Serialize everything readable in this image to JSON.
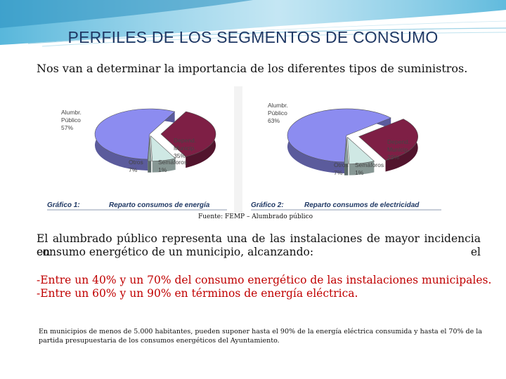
{
  "slide": {
    "title": "PERFILES DE LOS SEGMENTOS DE CONSUMO",
    "intro": "Nos  van a determinar la importancia de los diferentes tipos de suministros.",
    "source": "Fuente: FEMP – Alumbrado público",
    "para_line1": "El alumbrado público representa una de las instalaciones de mayor incidencia en el",
    "para_line2": "consumo energético de un municipio, alcanzando:",
    "highlight1": "-Entre un 40% y un 70% del consumo energético de las instalaciones municipales.",
    "highlight2": "-Entre un 60% y un 90% en términos de energía eléctrica.",
    "note_line1": "En municipios de menos de 5.000 habitantes, pueden suponer hasta el 90% de la energía eléctrica consumida y hasta el 70% de la",
    "note_line2": "partida presupuestaria de los consumos energéticos del Ayuntamiento.",
    "accent_color": "#1f3864",
    "highlight_color": "#c00000"
  },
  "chart_data": [
    {
      "type": "pie",
      "caption_num": "Gráfico 1:",
      "caption_text": "Reparto consumos de energía",
      "slices": [
        {
          "label1": "Alumbr.",
          "label2": "Público",
          "value": 57,
          "value_text": "57%",
          "color": "#8c8cf0"
        },
        {
          "label1": "Depend.",
          "label2": "Municip.",
          "value": 35,
          "value_text": "35%",
          "color": "#7e1f45"
        },
        {
          "label1": "Otros",
          "label2": "",
          "value": 7,
          "value_text": "7%",
          "color": "#cfe8e4"
        },
        {
          "label1": "Semáforos",
          "label2": "",
          "value": 1,
          "value_text": "1%",
          "color": "#8aa1a0"
        }
      ]
    },
    {
      "type": "pie",
      "caption_num": "Gráfico 2:",
      "caption_text": "Reparto consumos de electricidad",
      "slices": [
        {
          "label1": "Alumbr.",
          "label2": "Público",
          "value": 63,
          "value_text": "63%",
          "color": "#8c8cf0"
        },
        {
          "label1": "Depend.",
          "label2": "Municip.",
          "value": 29,
          "value_text": "29%",
          "color": "#7e1f45"
        },
        {
          "label1": "Otros",
          "label2": "",
          "value": 7,
          "value_text": "7%",
          "color": "#cfe8e4"
        },
        {
          "label1": "Semáforos",
          "label2": "",
          "value": 1,
          "value_text": "1%",
          "color": "#8aa1a0"
        }
      ]
    }
  ]
}
